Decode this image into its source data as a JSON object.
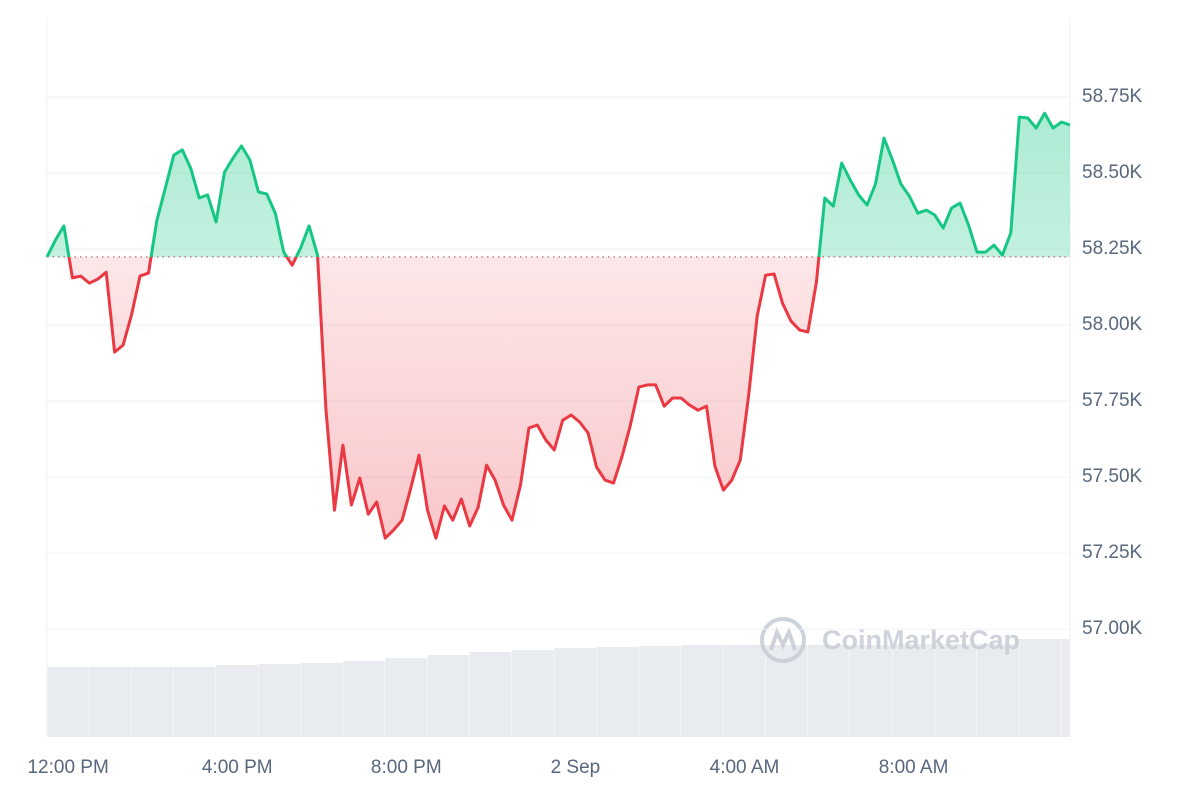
{
  "chart_data": {
    "type": "line",
    "watermark": "CoinMarketCap",
    "x": [
      -0.5,
      -0.3,
      -0.1,
      0.1,
      0.3,
      0.5,
      0.7,
      0.9,
      1.1,
      1.3,
      1.5,
      1.7,
      1.9,
      2.1,
      2.3,
      2.5,
      2.7,
      2.9,
      3.1,
      3.3,
      3.5,
      3.7,
      3.9,
      4.1,
      4.3,
      4.5,
      4.7,
      4.9,
      5.1,
      5.3,
      5.5,
      5.7,
      5.9,
      6.1,
      6.3,
      6.5,
      6.7,
      6.9,
      7.1,
      7.3,
      7.5,
      7.7,
      7.9,
      8.1,
      8.3,
      8.5,
      8.7,
      8.9,
      9.1,
      9.3,
      9.5,
      9.7,
      9.9,
      10.1,
      10.3,
      10.5,
      10.7,
      10.9,
      11.1,
      11.3,
      11.5,
      11.7,
      11.9,
      12.1,
      12.3,
      12.5,
      12.7,
      12.9,
      13.1,
      13.3,
      13.5,
      13.7,
      13.9,
      14.1,
      14.3,
      14.5,
      14.7,
      14.9,
      15.1,
      15.3,
      15.5,
      15.7,
      15.9,
      16.1,
      16.3,
      16.5,
      16.7,
      16.9,
      17.1,
      17.3,
      17.5,
      17.7,
      17.9,
      18.1,
      18.3,
      18.5,
      18.7,
      18.9,
      19.1,
      19.3,
      19.5,
      19.7,
      19.9,
      20.1,
      20.3,
      20.5,
      20.7,
      20.9,
      21.1,
      21.3,
      21.5,
      21.7,
      21.9,
      22.1,
      22.3,
      22.5,
      22.7,
      22.9,
      23.1,
      23.3,
      23.5,
      23.7
    ],
    "values": [
      58224,
      58280,
      58326,
      58155,
      58161,
      58138,
      58151,
      58174,
      57911,
      57934,
      58033,
      58161,
      58171,
      58345,
      58451,
      58559,
      58576,
      58516,
      58418,
      58428,
      58339,
      58503,
      58549,
      58589,
      58543,
      58438,
      58431,
      58368,
      58240,
      58197,
      58253,
      58326,
      58230,
      57720,
      57391,
      57605,
      57408,
      57497,
      57378,
      57418,
      57299,
      57326,
      57358,
      57460,
      57572,
      57391,
      57299,
      57405,
      57358,
      57428,
      57339,
      57401,
      57539,
      57490,
      57408,
      57358,
      57474,
      57661,
      57671,
      57622,
      57589,
      57687,
      57704,
      57681,
      57645,
      57533,
      57490,
      57480,
      57566,
      57671,
      57796,
      57803,
      57803,
      57733,
      57760,
      57760,
      57737,
      57720,
      57733,
      57536,
      57457,
      57490,
      57556,
      57770,
      58030,
      58164,
      58168,
      58072,
      58013,
      57984,
      57977,
      58141,
      58418,
      58391,
      58533,
      58477,
      58428,
      58395,
      58464,
      58615,
      58543,
      58464,
      58424,
      58368,
      58378,
      58362,
      58319,
      58385,
      58401,
      58329,
      58240,
      58240,
      58263,
      58230,
      58303,
      58684,
      58681,
      58648,
      58697,
      58648,
      58668,
      58658
    ],
    "reference_value": 58224,
    "up_color": "#16c784",
    "down_color": "#ea3943",
    "xlim": [
      -0.5,
      23.7
    ],
    "ylim": [
      56645,
      59010
    ],
    "xticks": [
      {
        "value": 0,
        "label": "12:00 PM"
      },
      {
        "value": 4,
        "label": "4:00 PM"
      },
      {
        "value": 8,
        "label": "8:00 PM"
      },
      {
        "value": 12,
        "label": "2 Sep"
      },
      {
        "value": 16,
        "label": "4:00 AM"
      },
      {
        "value": 20,
        "label": "8:00 AM"
      }
    ],
    "yticks": [
      {
        "value": 57000,
        "label": "57.00K"
      },
      {
        "value": 57250,
        "label": "57.25K"
      },
      {
        "value": 57500,
        "label": "57.50K"
      },
      {
        "value": 57750,
        "label": "57.75K"
      },
      {
        "value": 58000,
        "label": "58.00K"
      },
      {
        "value": 58250,
        "label": "58.25K"
      },
      {
        "value": 58500,
        "label": "58.50K"
      },
      {
        "value": 58750,
        "label": "58.75K"
      }
    ],
    "grid": true,
    "volume": {
      "color": "#e8ebef",
      "x": [
        -0.5,
        0.5,
        1.5,
        2.5,
        3.5,
        4.5,
        5.5,
        6.5,
        7.5,
        8.5,
        9.5,
        10.5,
        11.5,
        12.5,
        13.5,
        14.5,
        15.5,
        16.5,
        17.5,
        18.5,
        19.5,
        20.5,
        21.5,
        22.5,
        23.5
      ],
      "values": [
        70,
        70,
        70,
        70,
        72,
        73,
        74,
        76,
        79,
        82,
        85,
        87,
        89,
        90,
        91,
        92,
        92,
        92,
        92,
        92,
        93,
        93,
        93,
        98,
        98
      ]
    }
  }
}
